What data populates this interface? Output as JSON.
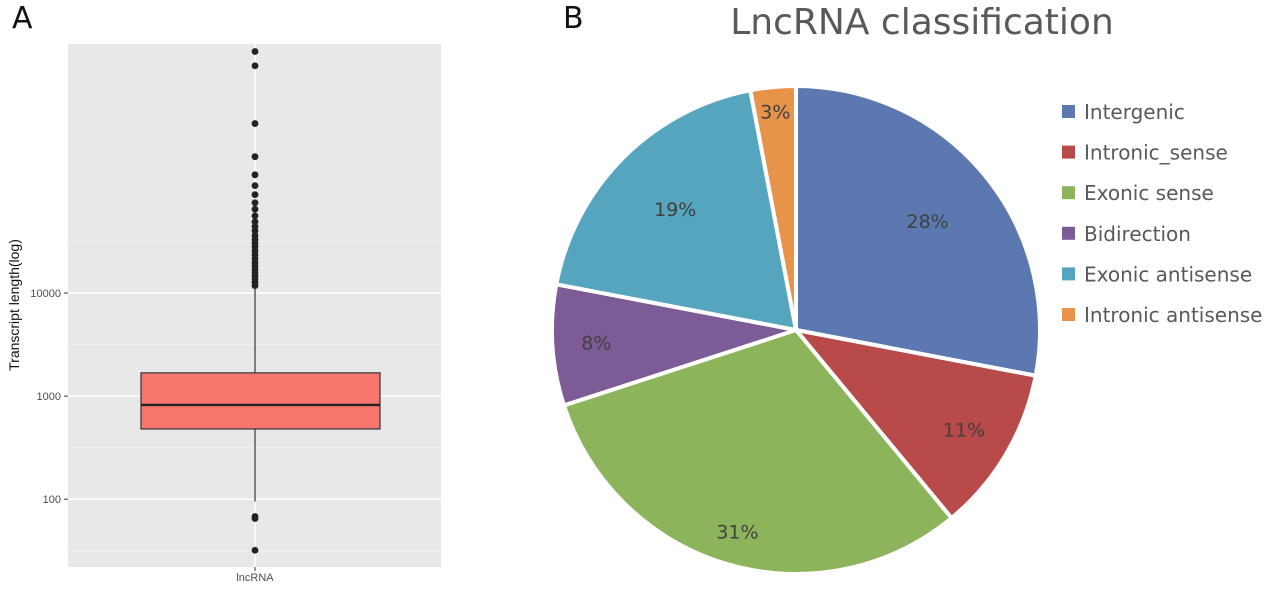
{
  "chart_data": [
    {
      "type": "boxplot",
      "panel_label": "A",
      "title": "",
      "xlabel": "",
      "ylabel": "Transcript length(log)",
      "scale": "log10",
      "ylim": [
        22,
        2600000
      ],
      "yticks": [
        100,
        1000,
        10000
      ],
      "ytick_labels": [
        "100",
        "1000",
        "10000"
      ],
      "categories": [
        "lncRNA"
      ],
      "box": {
        "category": "lncRNA",
        "q1": 480,
        "median": 820,
        "q3": 1680,
        "whisker_low": 95,
        "whisker_high": 11000,
        "fill": "#f8766d"
      },
      "outliers": [
        68,
        65,
        32,
        11800,
        12600,
        13600,
        14600,
        15800,
        17000,
        18300,
        19800,
        21500,
        23500,
        25600,
        28000,
        30500,
        33000,
        36000,
        40000,
        44000,
        49000,
        56000,
        65000,
        75000,
        90000,
        110000,
        140000,
        210000,
        440000,
        1600000,
        2200000
      ]
    },
    {
      "type": "pie",
      "panel_label": "B",
      "title": "LncRNA classification",
      "slices": [
        {
          "label": "Intergenic",
          "value": 28,
          "display": "28%",
          "color": "#5b78b0"
        },
        {
          "label": "Intronic_sense",
          "value": 11,
          "display": "11%",
          "color": "#b84a4a"
        },
        {
          "label": "Exonic sense",
          "value": 31,
          "display": "31%",
          "color": "#8cb45a"
        },
        {
          "label": "Bidirection",
          "value": 8,
          "display": "8%",
          "color": "#7d5b96"
        },
        {
          "label": "Exonic antisense",
          "value": 19,
          "display": "19%",
          "color": "#55a5be"
        },
        {
          "label": "Intronic antisense",
          "value": 3,
          "display": "3%",
          "color": "#e8934a"
        }
      ],
      "legend_position": "right"
    }
  ]
}
